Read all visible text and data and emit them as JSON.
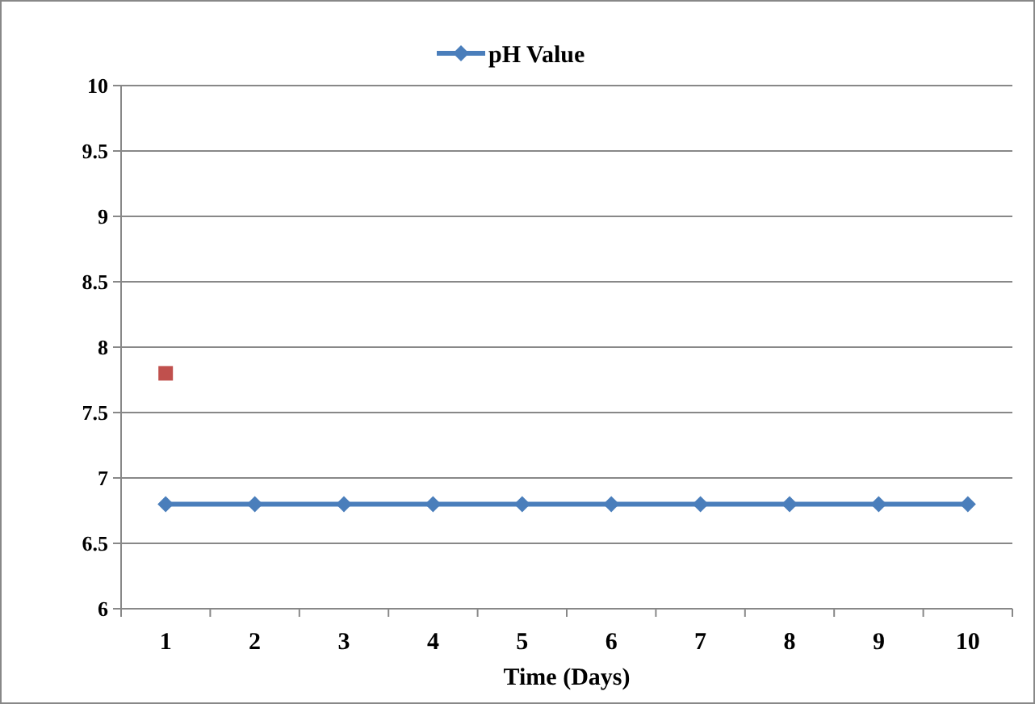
{
  "chart_data": {
    "type": "line",
    "xlabel": "Time (Days)",
    "categories": [
      "1",
      "2",
      "3",
      "4",
      "5",
      "6",
      "7",
      "8",
      "9",
      "10"
    ],
    "series": [
      {
        "name": "pH Value",
        "color": "#4a7ebb",
        "values": [
          6.8,
          6.8,
          6.8,
          6.8,
          6.8,
          6.8,
          6.8,
          6.8,
          6.8,
          6.8
        ],
        "marker": "diamond"
      },
      {
        "type": "scatter",
        "color": "#c0504d",
        "marker": "square",
        "values": [
          7.8,
          null,
          null,
          null,
          null,
          null,
          null,
          null,
          null,
          null
        ]
      }
    ],
    "ylim": [
      6,
      10
    ],
    "yticks": [
      6,
      6.5,
      7,
      7.5,
      8,
      8.5,
      9,
      9.5,
      10
    ],
    "grid": "y",
    "legend": "top",
    "line_style": "solid"
  }
}
